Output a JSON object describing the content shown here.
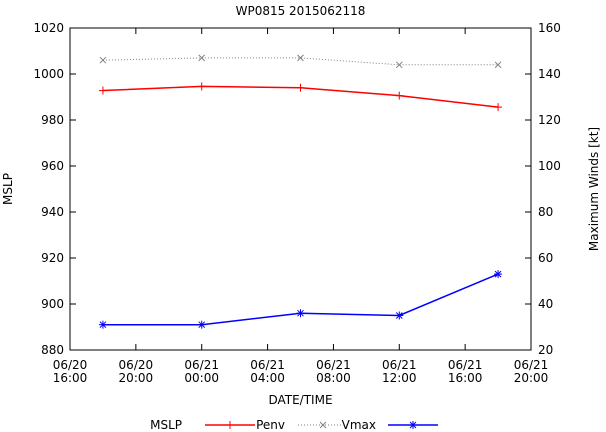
{
  "chart_data": {
    "type": "line",
    "title": "WP0815 2015062118",
    "xlabel": "DATE/TIME",
    "ylabel_left": "MSLP",
    "ylabel_right": "Maximum Winds [kt]",
    "x_ticks": [
      {
        "l1": "06/20",
        "l2": "16:00"
      },
      {
        "l1": "06/20",
        "l2": "20:00"
      },
      {
        "l1": "06/21",
        "l2": "00:00"
      },
      {
        "l1": "06/21",
        "l2": "04:00"
      },
      {
        "l1": "06/21",
        "l2": "08:00"
      },
      {
        "l1": "06/21",
        "l2": "12:00"
      },
      {
        "l1": "06/21",
        "l2": "16:00"
      },
      {
        "l1": "06/21",
        "l2": "20:00"
      }
    ],
    "x_points": [
      18,
      24,
      30,
      36,
      42
    ],
    "xlim": [
      16,
      44
    ],
    "ylim_left": [
      880,
      1020
    ],
    "y_ticks_left": [
      880,
      900,
      920,
      940,
      960,
      980,
      1000,
      1020
    ],
    "ylim_right": [
      20,
      160
    ],
    "y_ticks_right": [
      20,
      40,
      60,
      80,
      100,
      120,
      140,
      160
    ],
    "series": [
      {
        "name": "Penv",
        "axis": "left",
        "color": "#ff0000",
        "marker": "plus",
        "dashed": false,
        "values": [
          992.8,
          994.6,
          994.0,
          990.6,
          985.6
        ]
      },
      {
        "name": "Vmax",
        "axis": "right",
        "color": "#808080",
        "marker": "x",
        "dashed": true,
        "values": [
          146,
          147,
          147,
          144,
          144
        ]
      },
      {
        "name": "",
        "axis": "left",
        "color": "#0000ff",
        "marker": "star",
        "dashed": false,
        "values": [
          891,
          891,
          896,
          895,
          913
        ]
      }
    ],
    "legend": {
      "position": "bottom",
      "entries": [
        {
          "label": "MSLP",
          "line": false
        },
        {
          "label": "Penv",
          "line": true,
          "series": 0
        },
        {
          "label": "Vmax",
          "line": true,
          "series": 1
        },
        {
          "label": "",
          "line": true,
          "series": 2
        }
      ]
    }
  }
}
